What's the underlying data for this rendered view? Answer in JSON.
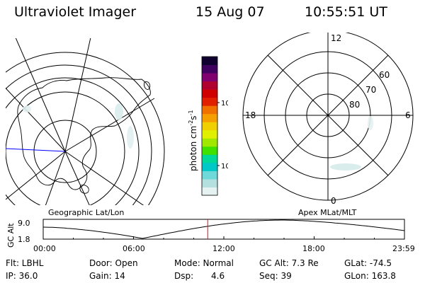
{
  "header": {
    "instrument": "Ultraviolet Imager",
    "date": "15 Aug 07",
    "time": "10:55:51 UT"
  },
  "geo_map": {
    "label": "Geographic Lat/Lon"
  },
  "mag_map": {
    "label": "Apex MLat/MLT",
    "mlt_labels": [
      "12",
      "18",
      "6",
      "0"
    ],
    "lat_labels": [
      "60",
      "70",
      "80"
    ]
  },
  "colorbar": {
    "unit": "photon cm",
    "unit_exp1": "-2",
    "unit_mid": "s",
    "unit_exp2": "-1",
    "tick_labels": [
      "100",
      "10"
    ],
    "colors": [
      "#e6f2f2",
      "#b4e0e0",
      "#6fd8d8",
      "#00c8c8",
      "#00d89a",
      "#40e000",
      "#a0e800",
      "#e0f000",
      "#f0d000",
      "#f5a000",
      "#f07000",
      "#e02000",
      "#d00000",
      "#b00030",
      "#800070",
      "#400060",
      "#100030"
    ]
  },
  "timeline": {
    "y_label": "GC Alt",
    "y_ticks": [
      "9.0",
      "1.8"
    ],
    "x_ticks": [
      "00:00",
      "06:00",
      "12:00",
      "18:00",
      "23:59"
    ],
    "current_time_hours": 10.93,
    "marker_color": "#ff0000"
  },
  "status": {
    "flt": "Flt: LBHL",
    "ip": "IP: 36.0",
    "door": "Door: Open",
    "gain": "Gain: 14",
    "mode": "Mode: Normal",
    "dsp_label": "Dsp:",
    "dsp_value": "4.6",
    "gc_alt": "GC Alt: 7.3 Re",
    "seq": "Seq: 39",
    "glat": "GLat: -74.5",
    "glon": "GLon: 163.8"
  }
}
